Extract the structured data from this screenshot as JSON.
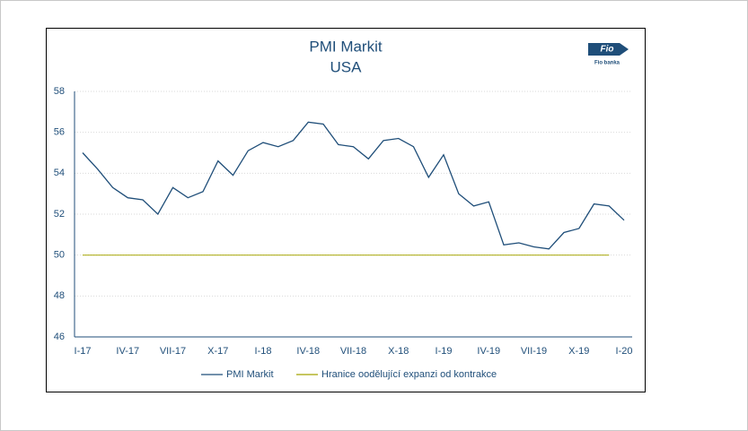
{
  "chart_data": {
    "type": "line",
    "title": "PMI Markit",
    "subtitle": "USA",
    "logo": {
      "mark": "Fio",
      "name": "Fio banka"
    },
    "categories": [
      "I-17",
      null,
      null,
      "IV-17",
      null,
      null,
      "VII-17",
      null,
      null,
      "X-17",
      null,
      null,
      "I-18",
      null,
      null,
      "IV-18",
      null,
      null,
      "VII-18",
      null,
      null,
      "X-18",
      null,
      null,
      "I-19",
      null,
      null,
      "IV-19",
      null,
      null,
      "VII-19",
      null,
      null,
      "X-19",
      null,
      null,
      "I-20"
    ],
    "series": [
      {
        "name": "PMI Markit",
        "color": "#1f4e79",
        "values": [
          55.0,
          54.2,
          53.3,
          52.8,
          52.7,
          52.0,
          53.3,
          52.8,
          53.1,
          54.6,
          53.9,
          55.1,
          55.5,
          55.3,
          55.6,
          56.5,
          56.4,
          55.4,
          55.3,
          54.7,
          55.6,
          55.7,
          55.3,
          53.8,
          54.9,
          53.0,
          52.4,
          52.6,
          50.5,
          50.6,
          50.4,
          50.3,
          51.1,
          51.3,
          52.5,
          52.4,
          51.7
        ]
      },
      {
        "name": "Hranice oodělující expanzi od kontrakce",
        "color": "#a5a500",
        "values": [
          50,
          50,
          50,
          50,
          50,
          50,
          50,
          50,
          50,
          50,
          50,
          50,
          50,
          50,
          50,
          50,
          50,
          50,
          50,
          50,
          50,
          50,
          50,
          50,
          50,
          50,
          50,
          50,
          50,
          50,
          50,
          50,
          50,
          50,
          50,
          50,
          null
        ]
      }
    ],
    "ylim": [
      46,
      58
    ],
    "yticks": [
      46,
      48,
      50,
      52,
      54,
      56,
      58
    ],
    "grid": true,
    "legend": "bottom"
  }
}
